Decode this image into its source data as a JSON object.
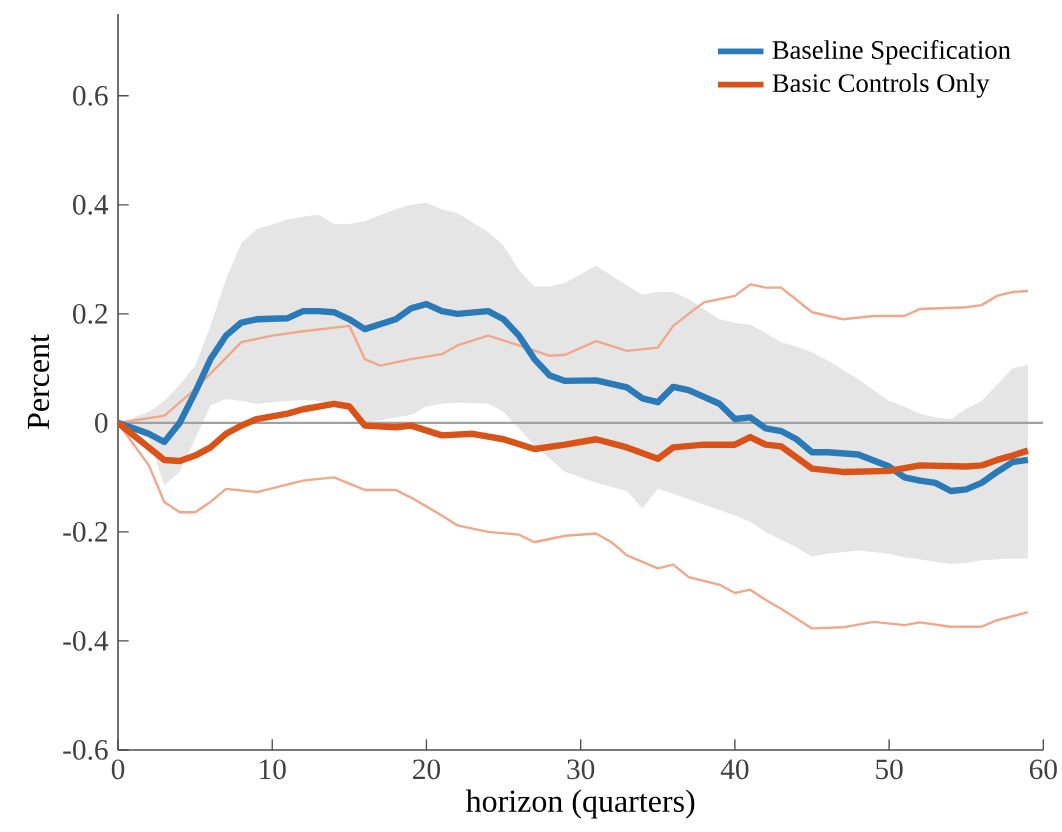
{
  "chart_data": {
    "type": "line",
    "xlabel": "horizon (quarters)",
    "ylabel": "Percent",
    "xlim": [
      0,
      60
    ],
    "ylim": [
      -0.6,
      0.75
    ],
    "xticks": [
      0,
      10,
      20,
      30,
      40,
      50,
      60
    ],
    "yticks": [
      -0.6,
      -0.4,
      -0.2,
      0,
      0.2,
      0.4,
      0.6
    ],
    "legend": "top right",
    "grid": false,
    "line_style": "solid",
    "marker": "none",
    "ref_lines": [
      {
        "axis": "y",
        "value": 0,
        "color": "#a0a0a0"
      }
    ],
    "series": [
      {
        "name": "Baseline Specification",
        "color": "#2a7ab8",
        "x": [
          0,
          2,
          3,
          4,
          5,
          6,
          7,
          8,
          9,
          11,
          12,
          13,
          14,
          15,
          16,
          18,
          19,
          20,
          21,
          22,
          24,
          25,
          26,
          27,
          28,
          29,
          31,
          33,
          34,
          35,
          36,
          37,
          39,
          40,
          41,
          42,
          43,
          44,
          45,
          46,
          48,
          50,
          51,
          52,
          53,
          54,
          55,
          56,
          57,
          58,
          59
        ],
        "values": [
          0,
          -0.02,
          -0.035,
          0,
          0.056,
          0.117,
          0.16,
          0.184,
          0.19,
          0.192,
          0.205,
          0.205,
          0.203,
          0.19,
          0.172,
          0.19,
          0.21,
          0.218,
          0.205,
          0.2,
          0.205,
          0.19,
          0.16,
          0.117,
          0.087,
          0.077,
          0.078,
          0.065,
          0.045,
          0.038,
          0.066,
          0.06,
          0.035,
          0.007,
          0.01,
          -0.01,
          -0.015,
          -0.03,
          -0.054,
          -0.054,
          -0.058,
          -0.08,
          -0.1,
          -0.106,
          -0.11,
          -0.125,
          -0.122,
          -0.11,
          -0.09,
          -0.072,
          -0.068
        ],
        "upper": [
          0,
          0.02,
          0.04,
          0.07,
          0.105,
          0.178,
          0.264,
          0.33,
          0.355,
          0.373,
          0.378,
          0.382,
          0.365,
          0.365,
          0.37,
          0.392,
          0.4,
          0.404,
          0.392,
          0.385,
          0.35,
          0.325,
          0.28,
          0.25,
          0.25,
          0.257,
          0.288,
          0.252,
          0.235,
          0.24,
          0.24,
          0.227,
          0.19,
          0.183,
          0.18,
          0.165,
          0.148,
          0.14,
          0.129,
          0.115,
          0.08,
          0.04,
          0.03,
          0.017,
          0.01,
          0.007,
          0.026,
          0.04,
          0.07,
          0.1,
          0.107
        ],
        "lower": [
          0,
          -0.029,
          -0.115,
          -0.09,
          -0.029,
          0.032,
          0.044,
          0.04,
          0.035,
          0.04,
          0.042,
          0.04,
          0.035,
          0.03,
          0.0,
          0.01,
          0.015,
          0.03,
          0.035,
          0.037,
          0.035,
          0.02,
          -0.01,
          -0.041,
          -0.066,
          -0.09,
          -0.11,
          -0.125,
          -0.157,
          -0.121,
          -0.13,
          -0.14,
          -0.16,
          -0.17,
          -0.182,
          -0.2,
          -0.215,
          -0.228,
          -0.245,
          -0.24,
          -0.234,
          -0.24,
          -0.247,
          -0.25,
          -0.255,
          -0.259,
          -0.257,
          -0.252,
          -0.25,
          -0.249,
          -0.249
        ]
      },
      {
        "name": "Basic Controls Only",
        "color": "#d95319",
        "x": [
          0,
          2,
          3,
          4,
          5,
          6,
          7,
          8,
          9,
          11,
          12,
          14,
          15,
          16,
          18,
          19,
          21,
          23,
          25,
          27,
          29,
          31,
          33,
          35,
          36,
          38,
          40,
          41,
          42,
          43,
          45,
          47,
          50,
          52,
          55,
          56,
          57,
          58,
          59
        ],
        "values": [
          0,
          -0.045,
          -0.068,
          -0.07,
          -0.06,
          -0.045,
          -0.02,
          -0.005,
          0.007,
          0.017,
          0.025,
          0.035,
          0.03,
          -0.005,
          -0.008,
          -0.005,
          -0.023,
          -0.02,
          -0.03,
          -0.048,
          -0.04,
          -0.03,
          -0.045,
          -0.066,
          -0.045,
          -0.04,
          -0.04,
          -0.026,
          -0.04,
          -0.043,
          -0.084,
          -0.09,
          -0.088,
          -0.078,
          -0.08,
          -0.078,
          -0.068,
          -0.06,
          -0.051
        ]
      },
      {
        "color": "#f0a888",
        "x": [
          0,
          3,
          5,
          8,
          10,
          12,
          15,
          16,
          17,
          19,
          21,
          22,
          24,
          26,
          28,
          29,
          31,
          33,
          35,
          36,
          37,
          38,
          40,
          41,
          42,
          43,
          45,
          47,
          49,
          51,
          52,
          55,
          56,
          57,
          58,
          59
        ],
        "values": [
          0,
          0.013,
          0.062,
          0.148,
          0.16,
          0.168,
          0.178,
          0.117,
          0.105,
          0.117,
          0.126,
          0.142,
          0.16,
          0.142,
          0.123,
          0.125,
          0.15,
          0.132,
          0.138,
          0.178,
          0.2,
          0.221,
          0.233,
          0.254,
          0.248,
          0.248,
          0.203,
          0.19,
          0.196,
          0.196,
          0.209,
          0.212,
          0.216,
          0.233,
          0.24,
          0.242
        ]
      },
      {
        "color": "#f0a888",
        "x": [
          0,
          2,
          3,
          4,
          5,
          6,
          7,
          9,
          10,
          12,
          14,
          16,
          18,
          19,
          21,
          22,
          24,
          26,
          27,
          29,
          31,
          32,
          33,
          35,
          36,
          37,
          39,
          40,
          41,
          42,
          43,
          45,
          47,
          49,
          51,
          52,
          54,
          56,
          57,
          59
        ],
        "values": [
          0,
          -0.078,
          -0.145,
          -0.164,
          -0.164,
          -0.145,
          -0.121,
          -0.127,
          -0.12,
          -0.106,
          -0.1,
          -0.123,
          -0.123,
          -0.137,
          -0.17,
          -0.188,
          -0.2,
          -0.205,
          -0.219,
          -0.207,
          -0.203,
          -0.219,
          -0.243,
          -0.267,
          -0.26,
          -0.283,
          -0.297,
          -0.312,
          -0.306,
          -0.325,
          -0.341,
          -0.377,
          -0.375,
          -0.365,
          -0.371,
          -0.366,
          -0.374,
          -0.374,
          -0.362,
          -0.347
        ]
      }
    ]
  }
}
